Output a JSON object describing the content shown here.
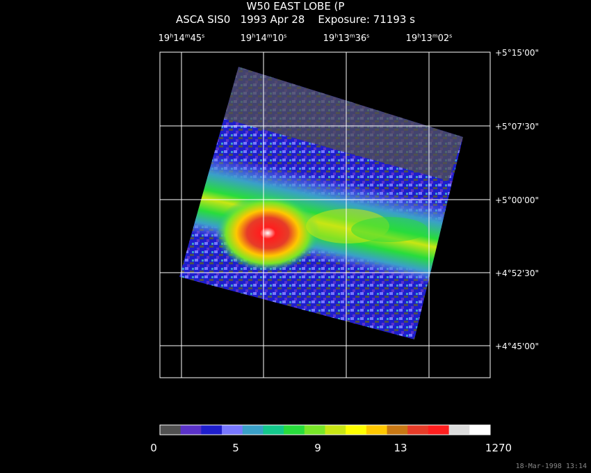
{
  "header": {
    "title_line1": "W50 EAST LOBE (P",
    "title_line2": "ASCA SIS0   1993 Apr 28    Exposure: 71193 s"
  },
  "ra_ticks": [
    {
      "h": "19",
      "m": "14",
      "s": "45"
    },
    {
      "h": "19",
      "m": "14",
      "s": "10"
    },
    {
      "h": "19",
      "m": "13",
      "s": "36"
    },
    {
      "h": "19",
      "m": "13",
      "s": "02"
    }
  ],
  "dec_ticks": [
    "+5°15'00\"",
    "+5°07'30\"",
    "+5°00'00\"",
    "+4°52'30\"",
    "+4°45'00\""
  ],
  "colorbar": {
    "colors": [
      "#505050",
      "#5a32c8",
      "#1e1ecc",
      "#7878ff",
      "#3aa0c8",
      "#14c88c",
      "#28dc3c",
      "#78e628",
      "#c8e614",
      "#ffff00",
      "#ffc800",
      "#c87814",
      "#e63c28",
      "#ff1e1e",
      "#dcdcdc",
      "#ffffff"
    ],
    "labels": [
      "0",
      "5",
      "9",
      "13",
      "1270"
    ]
  },
  "footer_text": "18-Mar-1998 13:14"
}
